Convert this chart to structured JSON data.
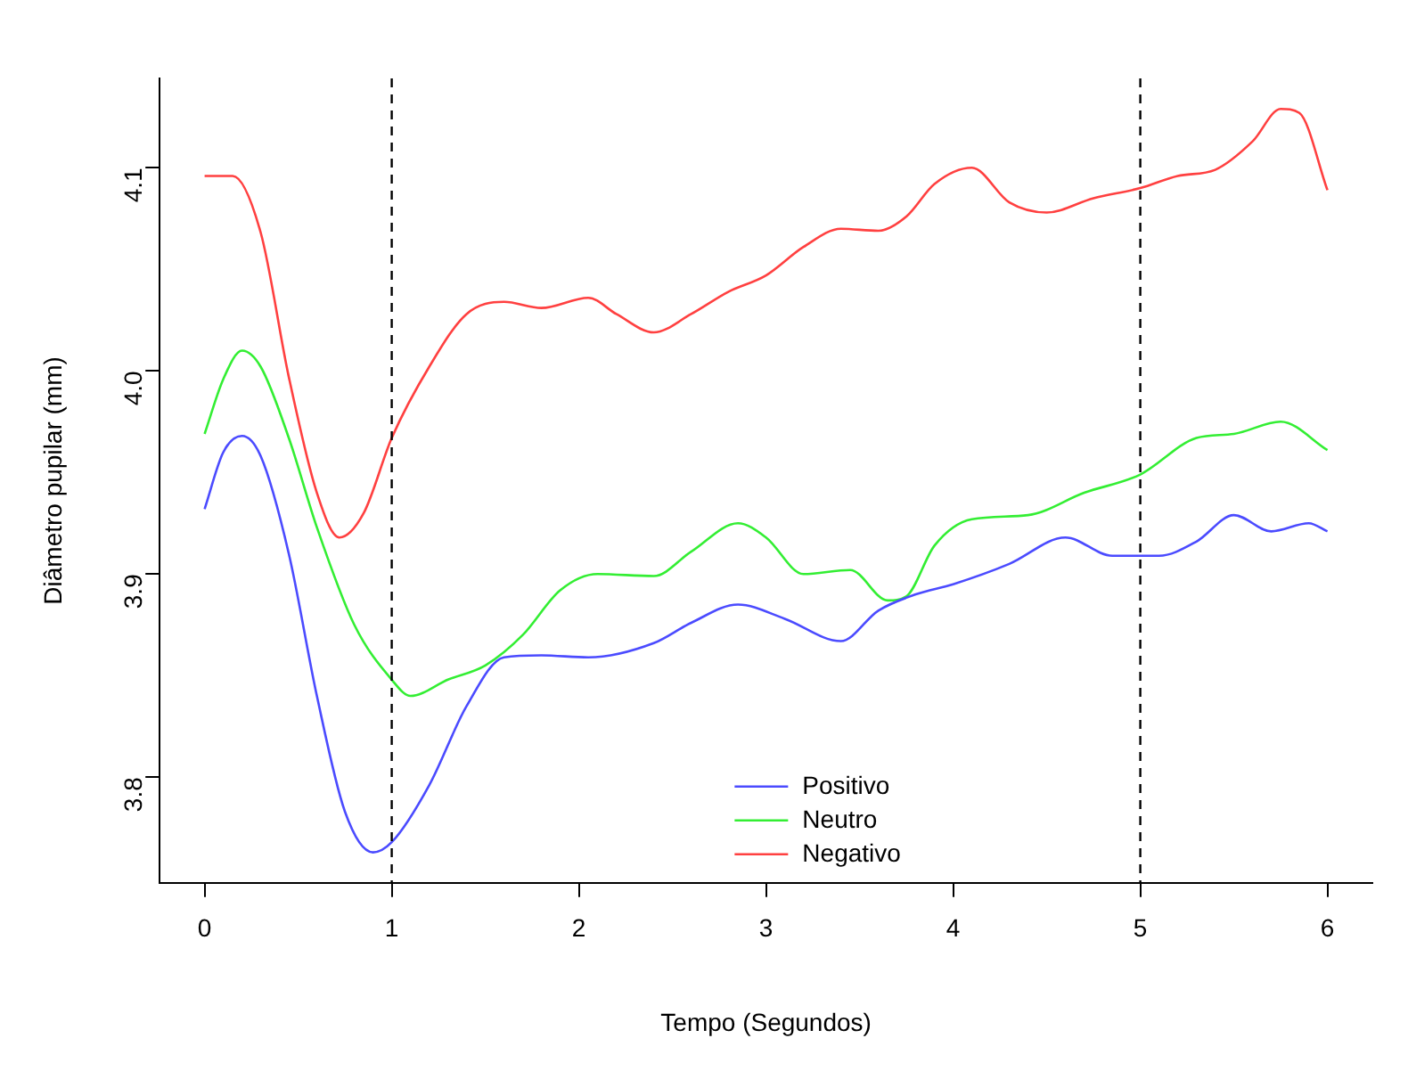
{
  "chart_data": {
    "type": "line",
    "xlabel": "Tempo (Segundos)",
    "ylabel": "Diâmetro pupilar (mm)",
    "xlim": [
      -0.24,
      6.24
    ],
    "ylim": [
      3.748,
      4.144
    ],
    "xticks": [
      0,
      1,
      2,
      3,
      4,
      5,
      6
    ],
    "yticks": [
      3.8,
      3.9,
      {
        "value": 4,
        "label": "4.0"
      },
      4.1
    ],
    "grid": false,
    "legend": "bottom",
    "marker": "none",
    "line_style": "solid",
    "ref_lines": [
      {
        "axis": "x",
        "value": 1,
        "color": "#000000",
        "line_style": "dashed"
      },
      {
        "axis": "x",
        "value": 5,
        "color": "#000000",
        "line_style": "dashed"
      }
    ],
    "series": [
      {
        "name": "Positivo",
        "color": "#4b4bff",
        "x": [
          0,
          0.1,
          0.2,
          0.3,
          0.45,
          0.6,
          0.75,
          0.9,
          1.0,
          1.2,
          1.4,
          1.6,
          1.8,
          2.05,
          2.4,
          2.6,
          2.85,
          3.1,
          3.4,
          3.6,
          3.8,
          4.0,
          4.3,
          4.6,
          4.85,
          5.1,
          5.3,
          5.5,
          5.7,
          5.9,
          6.0
        ],
        "values": [
          3.932,
          3.96,
          3.968,
          3.958,
          3.91,
          3.84,
          3.783,
          3.763,
          3.768,
          3.796,
          3.835,
          3.859,
          3.86,
          3.859,
          3.866,
          3.876,
          3.885,
          3.878,
          3.867,
          3.882,
          3.89,
          3.895,
          3.905,
          3.918,
          3.909,
          3.909,
          3.916,
          3.929,
          3.921,
          3.925,
          3.921
        ]
      },
      {
        "name": "Neutro",
        "color": "#33ee33",
        "x": [
          0,
          0.1,
          0.2,
          0.3,
          0.45,
          0.6,
          0.8,
          1.0,
          1.1,
          1.3,
          1.5,
          1.7,
          1.9,
          2.1,
          2.4,
          2.6,
          2.85,
          3.0,
          3.2,
          3.45,
          3.65,
          3.75,
          3.9,
          4.1,
          4.4,
          4.7,
          5.0,
          5.3,
          5.5,
          5.75,
          6.0
        ],
        "values": [
          3.969,
          3.996,
          4.01,
          4.002,
          3.967,
          3.923,
          3.875,
          3.848,
          3.84,
          3.848,
          3.855,
          3.87,
          3.892,
          3.9,
          3.899,
          3.911,
          3.925,
          3.918,
          3.9,
          3.902,
          3.887,
          3.889,
          3.914,
          3.927,
          3.929,
          3.94,
          3.949,
          3.967,
          3.969,
          3.975,
          3.961
        ]
      },
      {
        "name": "Negativo",
        "color": "#ff4040",
        "x": [
          0,
          0.15,
          0.3,
          0.45,
          0.6,
          0.72,
          0.85,
          1.0,
          1.2,
          1.4,
          1.6,
          1.8,
          2.05,
          2.2,
          2.4,
          2.6,
          2.8,
          3.0,
          3.2,
          3.4,
          3.6,
          3.75,
          3.9,
          4.1,
          4.3,
          4.5,
          4.75,
          5.0,
          5.2,
          5.4,
          5.6,
          5.75,
          5.85,
          6.0
        ],
        "values": [
          4.096,
          4.096,
          4.068,
          3.997,
          3.94,
          3.918,
          3.93,
          3.967,
          4.002,
          4.028,
          4.034,
          4.031,
          4.036,
          4.028,
          4.019,
          4.028,
          4.039,
          4.047,
          4.061,
          4.07,
          4.069,
          4.076,
          4.092,
          4.1,
          4.083,
          4.078,
          4.085,
          4.09,
          4.096,
          4.099,
          4.113,
          4.129,
          4.127,
          4.089
        ]
      }
    ]
  }
}
